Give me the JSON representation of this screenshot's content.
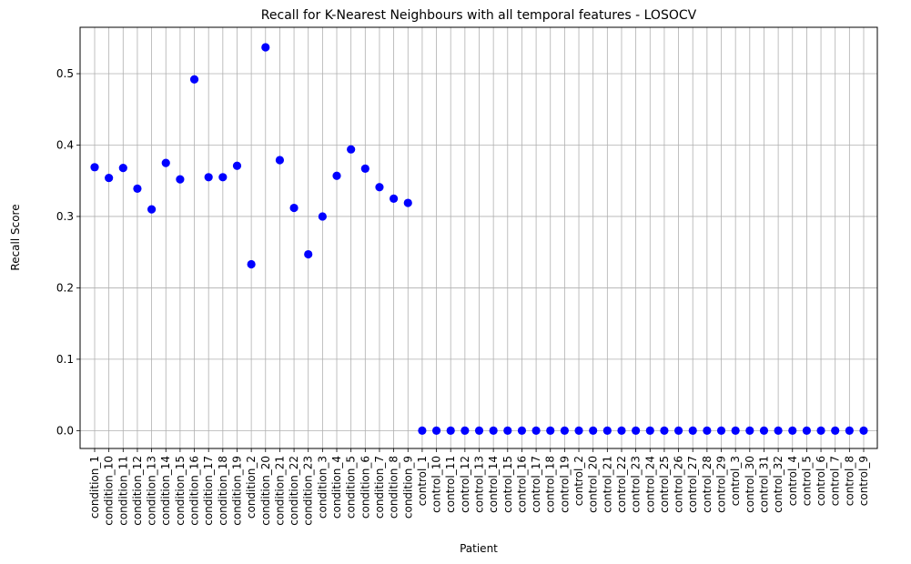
{
  "chart_data": {
    "type": "scatter",
    "title": "Recall for K-Nearest Neighbours with all temporal features - LOSOCV",
    "xlabel": "Patient",
    "ylabel": "Recall Score",
    "ylim": [
      -0.025,
      0.565
    ],
    "yticks": [
      0.0,
      0.1,
      0.2,
      0.3,
      0.4,
      0.5
    ],
    "grid": true,
    "marker_color": "#0000ff",
    "categories": [
      "condition_1",
      "condition_10",
      "condition_11",
      "condition_12",
      "condition_13",
      "condition_14",
      "condition_15",
      "condition_16",
      "condition_17",
      "condition_18",
      "condition_19",
      "condition_2",
      "condition_20",
      "condition_21",
      "condition_22",
      "condition_23",
      "condition_3",
      "condition_4",
      "condition_5",
      "condition_6",
      "condition_7",
      "condition_8",
      "condition_9",
      "control_1",
      "control_10",
      "control_11",
      "control_12",
      "control_13",
      "control_14",
      "control_15",
      "control_16",
      "control_17",
      "control_18",
      "control_19",
      "control_2",
      "control_20",
      "control_21",
      "control_22",
      "control_23",
      "control_24",
      "control_25",
      "control_26",
      "control_27",
      "control_28",
      "control_29",
      "control_3",
      "control_30",
      "control_31",
      "control_32",
      "control_4",
      "control_5",
      "control_6",
      "control_7",
      "control_8",
      "control_9"
    ],
    "values": [
      0.369,
      0.354,
      0.368,
      0.339,
      0.31,
      0.375,
      0.352,
      0.492,
      0.355,
      0.355,
      0.371,
      0.233,
      0.537,
      0.379,
      0.312,
      0.247,
      0.3,
      0.357,
      0.394,
      0.367,
      0.341,
      0.325,
      0.319,
      0,
      0,
      0,
      0,
      0,
      0,
      0,
      0,
      0,
      0,
      0,
      0,
      0,
      0,
      0,
      0,
      0,
      0,
      0,
      0,
      0,
      0,
      0,
      0,
      0,
      0,
      0,
      0,
      0,
      0,
      0,
      0
    ]
  }
}
